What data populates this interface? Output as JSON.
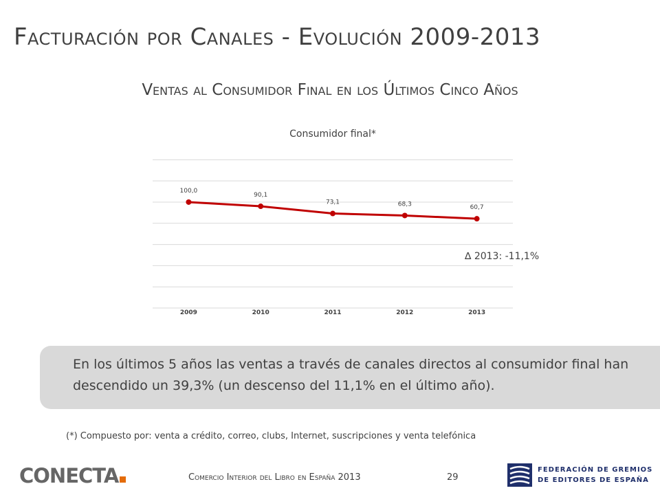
{
  "slide": {
    "title": "Facturación por Canales - Evolución 2009-2013",
    "subtitle": "Ventas al Consumidor Final en los Últimos Cinco Años"
  },
  "chart_data": {
    "type": "line",
    "title": "Consumidor final*",
    "categories": [
      "2009",
      "2010",
      "2011",
      "2012",
      "2013"
    ],
    "series": [
      {
        "values": [
          100.0,
          90.1,
          73.1,
          68.3,
          60.7
        ],
        "labels": [
          "100,0",
          "90,1",
          "73,1",
          "68,3",
          "60,7"
        ],
        "color": "#c00000"
      }
    ],
    "ylim": [
      -150,
      220
    ],
    "y_gridlines": [
      200,
      150,
      100,
      50,
      0,
      -50,
      -100,
      -150
    ],
    "grid": true,
    "legend": "none",
    "annotation": "∆ 2013:  -11,1%"
  },
  "callout": {
    "text": "En los últimos 5 años las ventas a través de canales directos al consumidor final han descendido un 39,3% (un descenso del 11,1% en el último año)."
  },
  "footnote": "(*) Compuesto por:  venta a crédito, correo, clubs, Internet, suscripciones y venta telefónica",
  "footer": {
    "text": "Comercio Interior del Libro en España 2013",
    "page_number": "29",
    "logo_left": "CONECTA",
    "logo_right_line1": "FEDERACIÓN DE GREMIOS",
    "logo_right_line2": "DE EDITORES DE ESPAÑA"
  },
  "colors": {
    "series_line": "#c00000",
    "callout_bg": "#d9d9d9",
    "logo_accent": "#e46c0a",
    "federation_blue": "#1f2f6b"
  }
}
